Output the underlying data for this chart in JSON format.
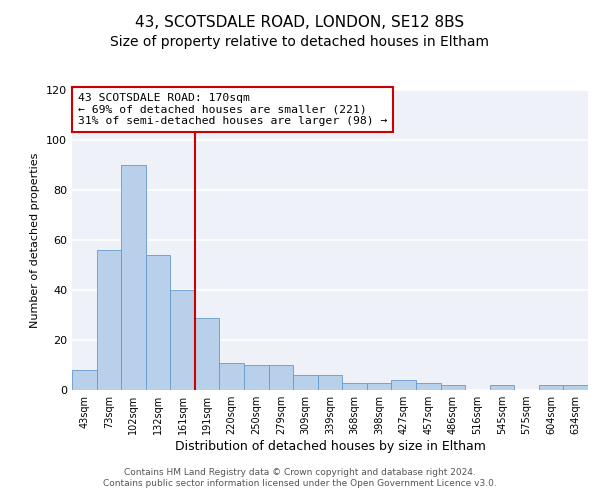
{
  "title": "43, SCOTSDALE ROAD, LONDON, SE12 8BS",
  "subtitle": "Size of property relative to detached houses in Eltham",
  "xlabel": "Distribution of detached houses by size in Eltham",
  "ylabel": "Number of detached properties",
  "bar_labels": [
    "43sqm",
    "73sqm",
    "102sqm",
    "132sqm",
    "161sqm",
    "191sqm",
    "220sqm",
    "250sqm",
    "279sqm",
    "309sqm",
    "339sqm",
    "368sqm",
    "398sqm",
    "427sqm",
    "457sqm",
    "486sqm",
    "516sqm",
    "545sqm",
    "575sqm",
    "604sqm",
    "634sqm"
  ],
  "bar_values": [
    8,
    56,
    90,
    54,
    40,
    29,
    11,
    10,
    10,
    6,
    6,
    3,
    3,
    4,
    3,
    2,
    0,
    2,
    0,
    2,
    2
  ],
  "bar_color": "#b8d0ea",
  "bar_edge_color": "#6699cc",
  "bar_width": 1.0,
  "ylim": [
    0,
    120
  ],
  "yticks": [
    0,
    20,
    40,
    60,
    80,
    100,
    120
  ],
  "vline_x": 4.5,
  "vline_color": "#cc0000",
  "annotation_text": "43 SCOTSDALE ROAD: 170sqm\n← 69% of detached houses are smaller (221)\n31% of semi-detached houses are larger (98) →",
  "annotation_box_color": "#ffffff",
  "annotation_box_edge_color": "#cc0000",
  "footer_line1": "Contains HM Land Registry data © Crown copyright and database right 2024.",
  "footer_line2": "Contains public sector information licensed under the Open Government Licence v3.0.",
  "plot_bg_color": "#eef2f8",
  "fig_bg_color": "#ffffff",
  "grid_color": "#ffffff",
  "title_fontsize": 11,
  "subtitle_fontsize": 10,
  "ylabel_fontsize": 8,
  "xlabel_fontsize": 9
}
